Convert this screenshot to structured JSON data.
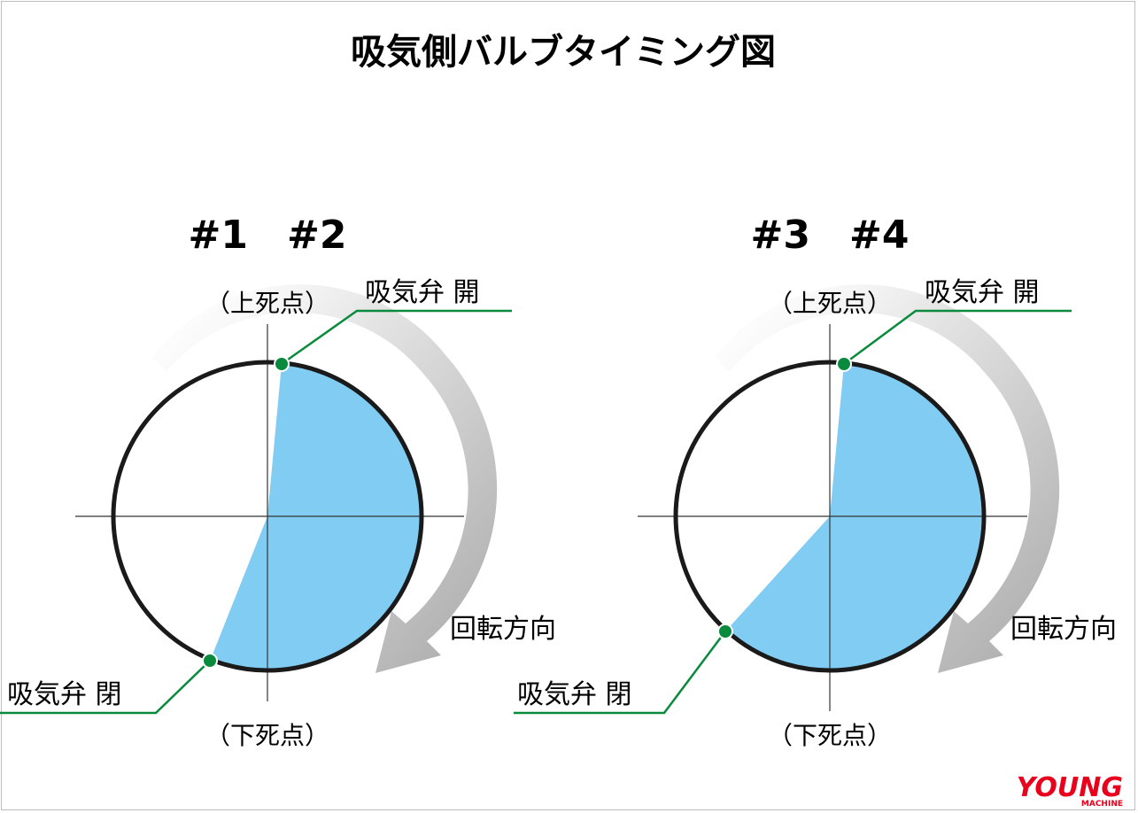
{
  "title": "吸気側バルブタイミング図",
  "diagrams": [
    {
      "cylinders": "#1　#2",
      "tdc_label": "（上死点）",
      "bdc_label": "（下死点）",
      "valve_open_label": "吸気弁 開",
      "valve_close_label": "吸気弁 閉",
      "rotation_label": "回転方向"
    },
    {
      "cylinders": "#3　#4",
      "tdc_label": "（上死点）",
      "bdc_label": "（下死点）",
      "valve_open_label": "吸気弁 開",
      "valve_close_label": "吸気弁 閉",
      "rotation_label": "回転方向"
    }
  ],
  "logo": {
    "main": "YOUNG",
    "sub": "MACHINE"
  },
  "colors": {
    "fill": "#80ccf2",
    "leader": "#0a8a3c",
    "dot": "#0a8a3c",
    "circle": "#1a1a1a",
    "arrow": "#b9b9b9",
    "logo": "#e8001c"
  }
}
